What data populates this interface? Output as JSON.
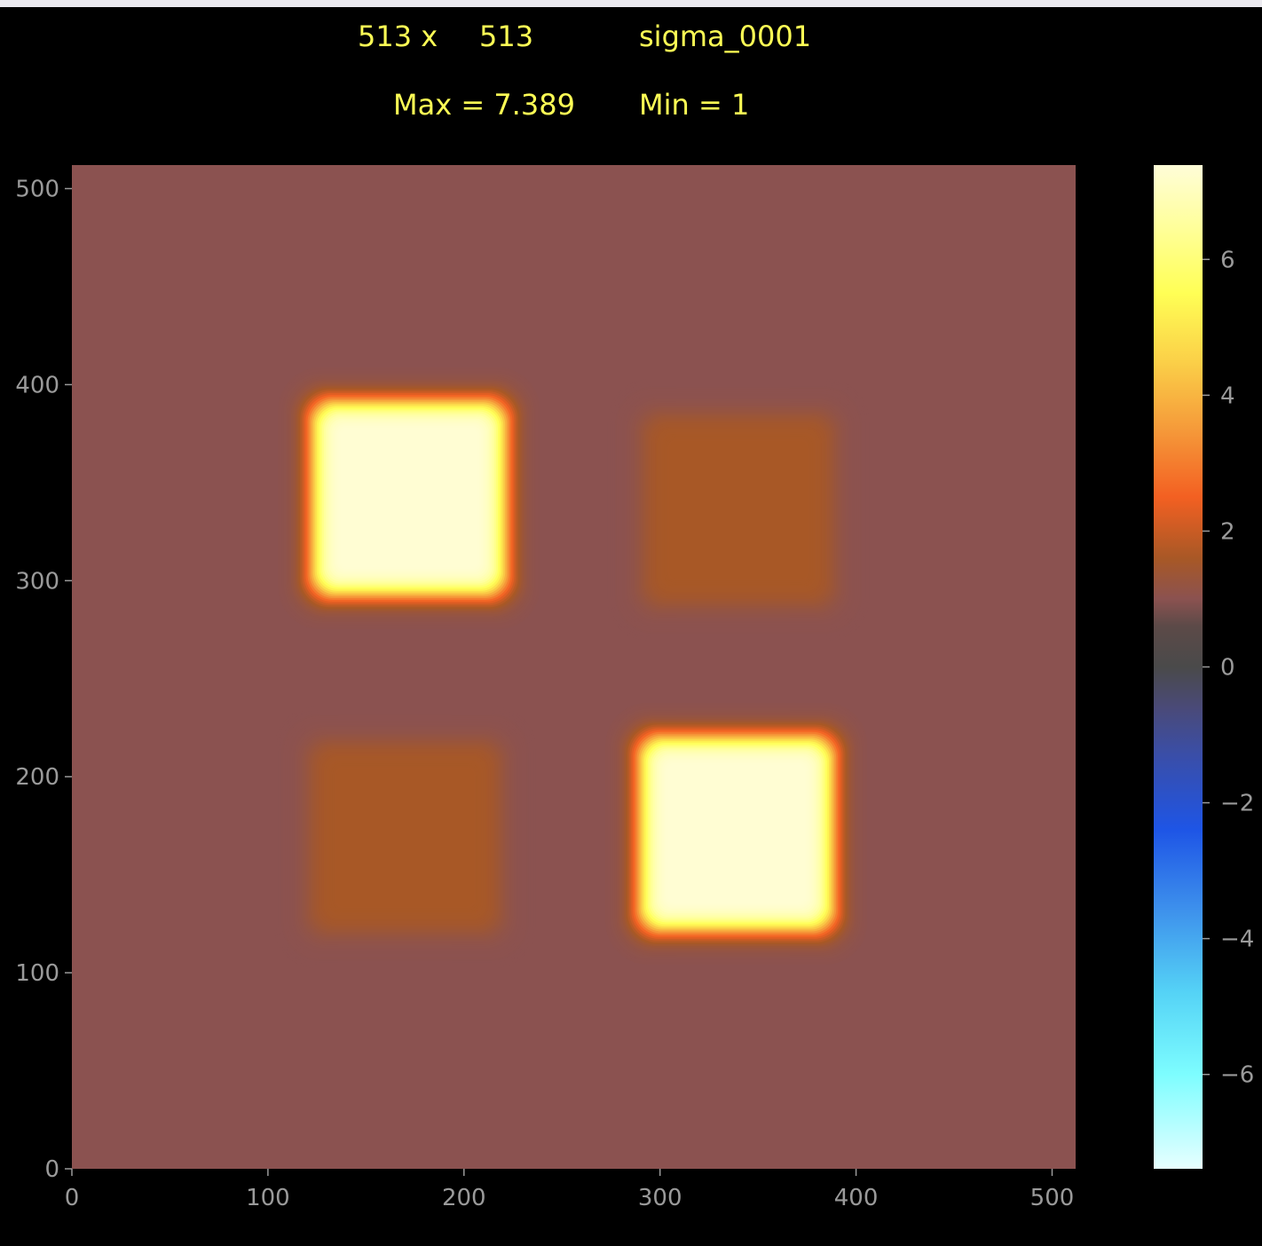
{
  "header": {
    "dims_x": "513 x",
    "dims_y": "513",
    "name": "sigma_0001",
    "max": "Max = 7.389",
    "min": "Min = 1"
  },
  "colors": {
    "background": "#000000",
    "title_text": "#ffff55",
    "tick_text": "#9a9a9a"
  },
  "colormap": [
    {
      "v": -7.389,
      "c": "#e6ffff"
    },
    {
      "v": -6.0,
      "c": "#7dfdff"
    },
    {
      "v": -4.8,
      "c": "#55d3f6"
    },
    {
      "v": -3.6,
      "c": "#3e92ec"
    },
    {
      "v": -2.4,
      "c": "#1e55e6"
    },
    {
      "v": -1.3,
      "c": "#3a4ea8"
    },
    {
      "v": -0.6,
      "c": "#4a4a78"
    },
    {
      "v": 0.0,
      "c": "#4a4a4a"
    },
    {
      "v": 0.6,
      "c": "#5c4a48"
    },
    {
      "v": 1.0,
      "c": "#8b5250"
    },
    {
      "v": 1.6,
      "c": "#a85826"
    },
    {
      "v": 2.5,
      "c": "#f36022"
    },
    {
      "v": 3.5,
      "c": "#f59a3a"
    },
    {
      "v": 4.5,
      "c": "#fbd048"
    },
    {
      "v": 5.5,
      "c": "#ffff55"
    },
    {
      "v": 6.5,
      "c": "#ffff9c"
    },
    {
      "v": 7.389,
      "c": "#fffdd8"
    }
  ],
  "chart_data": {
    "type": "heatmap",
    "grid_size": [
      513,
      513
    ],
    "xlim": [
      0,
      512
    ],
    "ylim": [
      0,
      512
    ],
    "x_ticks": [
      0,
      100,
      200,
      300,
      400,
      500
    ],
    "y_ticks": [
      0,
      100,
      200,
      300,
      400,
      500
    ],
    "colorbar_range": [
      -7.389,
      7.389
    ],
    "colorbar_ticks": [
      6,
      4,
      2,
      0,
      -2,
      -4,
      -6
    ],
    "colorbar_tick_labels": [
      "6",
      "4",
      "2",
      "0",
      "−2",
      "−4",
      "−6"
    ],
    "background_value": 1.0,
    "features": [
      {
        "name": "peak-upper-left",
        "x": [
          132,
          212
        ],
        "y": [
          302,
          382
        ],
        "peak": 7.389,
        "blur": 9
      },
      {
        "name": "plateau-upper-right",
        "x": [
          300,
          380
        ],
        "y": [
          296,
          376
        ],
        "peak": 1.6,
        "blur": 9
      },
      {
        "name": "plateau-lower-left",
        "x": [
          130,
          210
        ],
        "y": [
          129,
          209
        ],
        "peak": 1.6,
        "blur": 9
      },
      {
        "name": "peak-lower-right",
        "x": [
          299,
          379
        ],
        "y": [
          131,
          211
        ],
        "peak": 7.389,
        "blur": 9
      }
    ]
  }
}
